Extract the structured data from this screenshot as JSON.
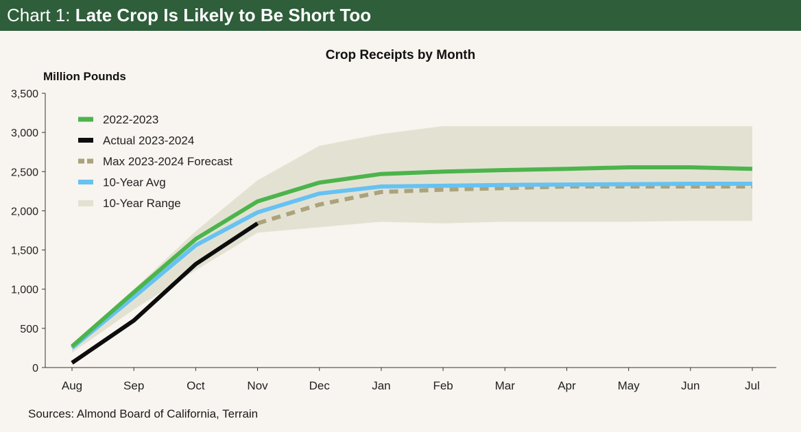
{
  "header": {
    "prefix": "Chart 1: ",
    "title": "Late Crop Is Likely to Be Short Too"
  },
  "sources": "Sources: Almond Board of California, Terrain",
  "colors": {
    "header_bg": "#2e5e3a",
    "series_2022": "#4cb44c",
    "series_actual": "#0d0d0d",
    "series_forecast": "#aca27c",
    "series_avg": "#66c2f2",
    "range_fill": "#e3e2d2"
  },
  "chart_data": {
    "type": "line",
    "title": "Crop Receipts by Month",
    "ylabel": "Million Pounds",
    "xlabel": "",
    "categories": [
      "Aug",
      "Sep",
      "Oct",
      "Nov",
      "Dec",
      "Jan",
      "Feb",
      "Mar",
      "Apr",
      "May",
      "Jun",
      "Jul"
    ],
    "ylim": [
      0,
      3500
    ],
    "yticks": [
      0,
      500,
      1000,
      1500,
      2000,
      2500,
      3000,
      3500
    ],
    "ytick_labels": [
      "0",
      "500",
      "1,000",
      "1,500",
      "2,000",
      "2,500",
      "3,000",
      "3,500"
    ],
    "grid": false,
    "legend_position": "top-left",
    "series": [
      {
        "name": "2022-2023",
        "style": "line",
        "values": [
          270,
          960,
          1640,
          2120,
          2360,
          2470,
          2500,
          2520,
          2535,
          2555,
          2555,
          2535
        ]
      },
      {
        "name": "Actual 2023-2024",
        "style": "line",
        "values": [
          60,
          600,
          1320,
          1840,
          null,
          null,
          null,
          null,
          null,
          null,
          null,
          null
        ]
      },
      {
        "name": "Max 2023-2024 Forecast",
        "style": "dashed",
        "values": [
          null,
          null,
          null,
          1840,
          2080,
          2240,
          2270,
          2290,
          2310,
          2310,
          2310,
          2310
        ]
      },
      {
        "name": "10-Year Avg",
        "style": "line",
        "values": [
          250,
          900,
          1560,
          1980,
          2220,
          2310,
          2320,
          2330,
          2335,
          2340,
          2345,
          2345
        ]
      },
      {
        "name": "10-Year Range",
        "style": "band",
        "upper": [
          300,
          1000,
          1740,
          2390,
          2830,
          2980,
          3080,
          3080,
          3080,
          3080,
          3080,
          3080
        ],
        "lower": [
          190,
          740,
          1240,
          1720,
          1790,
          1860,
          1840,
          1860,
          1860,
          1860,
          1870,
          1870
        ]
      }
    ]
  }
}
